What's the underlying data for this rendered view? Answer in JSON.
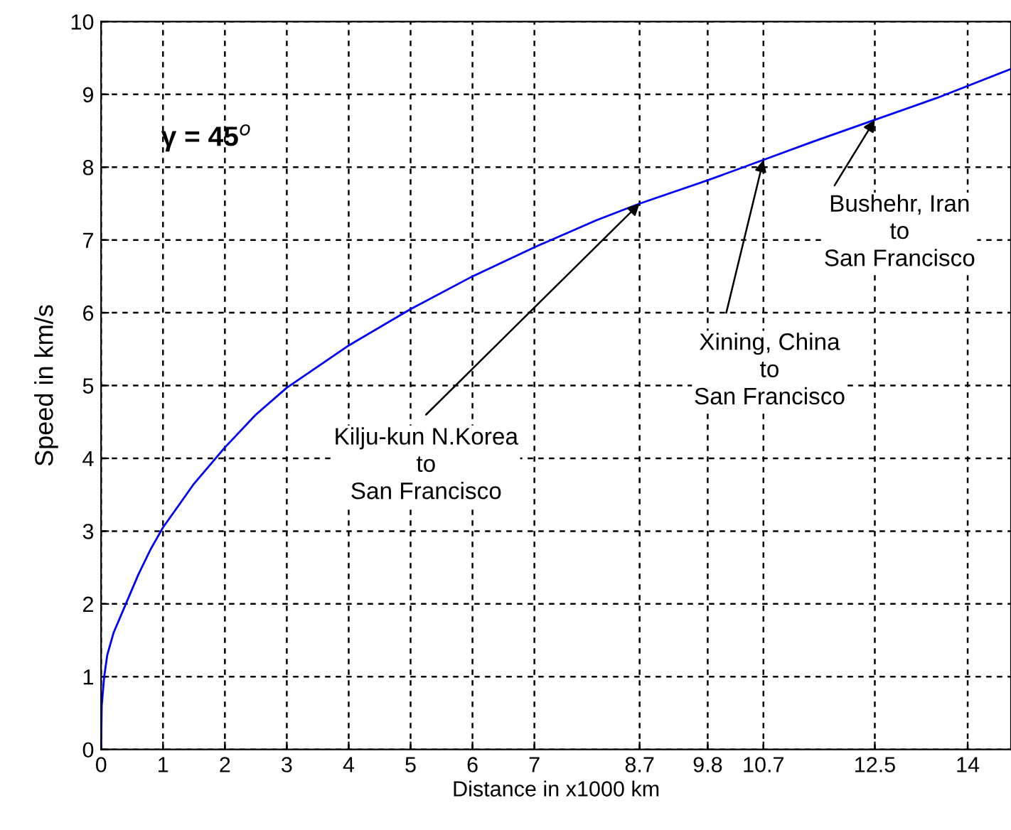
{
  "chart_data": {
    "type": "line",
    "xlabel": "Distance in x1000 km",
    "ylabel": "Speed in km/s",
    "x": [
      0,
      0.01,
      0.05,
      0.1,
      0.2,
      0.4,
      0.6,
      0.8,
      1,
      1.5,
      2,
      2.5,
      3,
      4,
      5,
      6,
      7,
      8,
      8.7,
      9.8,
      10.7,
      11.5,
      12.5,
      13.5,
      14.7
    ],
    "series": [
      {
        "color": "#0000ff",
        "values": [
          0,
          0.6,
          1.0,
          1.3,
          1.6,
          2.0,
          2.4,
          2.75,
          3.05,
          3.65,
          4.15,
          4.6,
          4.97,
          5.55,
          6.05,
          6.5,
          6.9,
          7.27,
          7.5,
          7.82,
          8.1,
          8.35,
          8.65,
          8.95,
          9.35
        ]
      }
    ],
    "xlim": [
      0,
      14.7
    ],
    "ylim": [
      0,
      10
    ],
    "xticks": [
      0,
      1,
      2,
      3,
      4,
      5,
      6,
      7,
      8.7,
      9.8,
      10.7,
      12.5,
      14
    ],
    "yticks": [
      0,
      1,
      2,
      3,
      4,
      5,
      6,
      7,
      8,
      9,
      10
    ],
    "grid": true,
    "line_style": "solid",
    "marker": "none",
    "annotations": [
      "γ = 45$^{o}$",
      {
        "text": "Kilju-kun N.Korea\nto\nSan Francisco",
        "x": 8.7,
        "y": 7.5
      },
      {
        "text": "Xining, China\nto\nSan Francisco",
        "x": 10.7,
        "y": 8.1
      },
      {
        "text": "Bushehr, Iran\nto\nSan Francisco",
        "x": 12.5,
        "y": 8.65
      }
    ]
  }
}
